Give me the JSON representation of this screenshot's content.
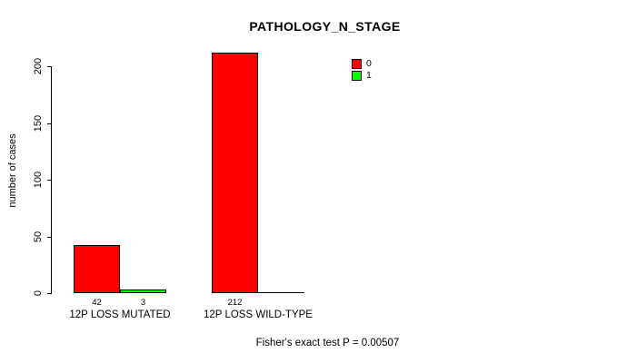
{
  "chart_data": {
    "type": "bar",
    "title": "PATHOLOGY_N_STAGE",
    "ylabel": "number of cases",
    "xlabel": "",
    "categories": [
      "12P LOSS MUTATED",
      "12P LOSS WILD-TYPE"
    ],
    "series": [
      {
        "name": "0",
        "color": "#ff0000",
        "values": [
          42,
          212
        ]
      },
      {
        "name": "1",
        "color": "#00ff00",
        "values": [
          3,
          0
        ]
      }
    ],
    "value_labels": [
      [
        "42",
        "3"
      ],
      [
        "212",
        ""
      ]
    ],
    "yticks": [
      0,
      50,
      100,
      150,
      200
    ],
    "ylim": [
      0,
      212
    ],
    "grid": false,
    "legend": {
      "position": "top-right",
      "entries": [
        {
          "label": "0",
          "color": "#ff0000"
        },
        {
          "label": "1",
          "color": "#00ff00"
        }
      ]
    },
    "annotation": "Fisher's exact test P = 0.00507"
  }
}
